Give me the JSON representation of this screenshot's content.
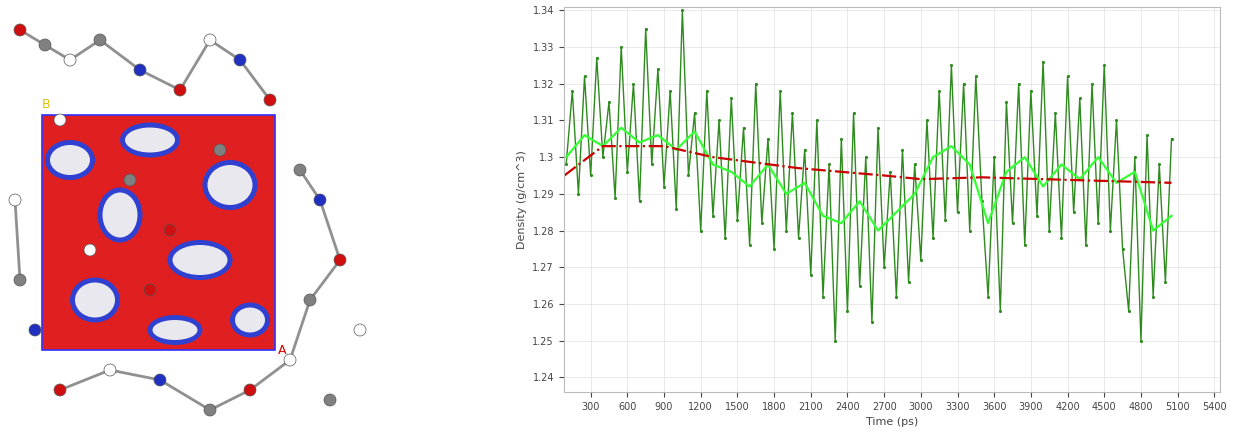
{
  "structure_view": {
    "corner_labels": [
      {
        "text": "B",
        "color": "#e0c000"
      },
      {
        "text": "A",
        "color": "#d00000"
      }
    ]
  },
  "chart_data": {
    "type": "line",
    "xlabel": "Time (ps)",
    "ylabel": "Density (g/cm^3)",
    "xlim": [
      80,
      5450
    ],
    "ylim": [
      1.236,
      1.341
    ],
    "xticks": [
      300,
      600,
      900,
      1200,
      1500,
      1800,
      2100,
      2400,
      2700,
      3000,
      3300,
      3600,
      3900,
      4200,
      4500,
      4800,
      5100,
      5400
    ],
    "yticks": [
      1.24,
      1.25,
      1.26,
      1.27,
      1.28,
      1.29,
      1.3,
      1.31,
      1.32,
      1.33,
      1.34
    ],
    "grid": true,
    "series": [
      {
        "color": "#2e8b1e",
        "marker": "point",
        "line_style": "solid",
        "x": [
          100,
          150,
          200,
          250,
          300,
          350,
          400,
          450,
          500,
          550,
          600,
          650,
          700,
          750,
          800,
          850,
          900,
          950,
          1000,
          1050,
          1100,
          1150,
          1200,
          1250,
          1300,
          1350,
          1400,
          1450,
          1500,
          1550,
          1600,
          1650,
          1700,
          1750,
          1800,
          1850,
          1900,
          1950,
          2000,
          2050,
          2100,
          2150,
          2200,
          2250,
          2300,
          2350,
          2400,
          2450,
          2500,
          2550,
          2600,
          2650,
          2700,
          2750,
          2800,
          2850,
          2900,
          2950,
          3000,
          3050,
          3100,
          3150,
          3200,
          3250,
          3300,
          3350,
          3400,
          3450,
          3500,
          3550,
          3600,
          3650,
          3700,
          3750,
          3800,
          3850,
          3900,
          3950,
          4000,
          4050,
          4100,
          4150,
          4200,
          4250,
          4300,
          4350,
          4400,
          4450,
          4500,
          4550,
          4600,
          4650,
          4700,
          4750,
          4800,
          4850,
          4900,
          4950,
          5000,
          5050
        ],
        "values": [
          1.298,
          1.318,
          1.29,
          1.322,
          1.295,
          1.327,
          1.3,
          1.315,
          1.289,
          1.33,
          1.296,
          1.32,
          1.288,
          1.335,
          1.298,
          1.324,
          1.292,
          1.318,
          1.286,
          1.34,
          1.295,
          1.312,
          1.28,
          1.318,
          1.284,
          1.31,
          1.278,
          1.316,
          1.283,
          1.308,
          1.276,
          1.32,
          1.282,
          1.305,
          1.275,
          1.318,
          1.28,
          1.312,
          1.278,
          1.302,
          1.268,
          1.31,
          1.262,
          1.298,
          1.25,
          1.305,
          1.258,
          1.312,
          1.265,
          1.3,
          1.255,
          1.308,
          1.27,
          1.296,
          1.262,
          1.302,
          1.266,
          1.298,
          1.272,
          1.31,
          1.278,
          1.318,
          1.283,
          1.325,
          1.285,
          1.32,
          1.28,
          1.322,
          1.288,
          1.262,
          1.3,
          1.258,
          1.315,
          1.282,
          1.32,
          1.276,
          1.318,
          1.284,
          1.326,
          1.28,
          1.312,
          1.278,
          1.322,
          1.285,
          1.316,
          1.276,
          1.32,
          1.282,
          1.325,
          1.28,
          1.31,
          1.275,
          1.258,
          1.3,
          1.25,
          1.306,
          1.262,
          1.298,
          1.266,
          1.305
        ]
      },
      {
        "color": "#33ff33",
        "line_style": "solid",
        "x": [
          100,
          250,
          400,
          550,
          700,
          850,
          1000,
          1150,
          1300,
          1450,
          1600,
          1750,
          1900,
          2050,
          2200,
          2350,
          2500,
          2650,
          2800,
          2950,
          3100,
          3250,
          3400,
          3550,
          3700,
          3850,
          4000,
          4150,
          4300,
          4450,
          4600,
          4750,
          4900,
          5050
        ],
        "values": [
          1.3,
          1.306,
          1.303,
          1.308,
          1.304,
          1.306,
          1.302,
          1.307,
          1.298,
          1.296,
          1.292,
          1.298,
          1.29,
          1.293,
          1.284,
          1.282,
          1.288,
          1.28,
          1.285,
          1.29,
          1.3,
          1.303,
          1.298,
          1.282,
          1.296,
          1.3,
          1.292,
          1.298,
          1.294,
          1.3,
          1.293,
          1.296,
          1.28,
          1.284
        ]
      },
      {
        "color": "#cc0000",
        "line_style": "dashdot",
        "x": [
          85,
          400,
          900,
          1300,
          2000,
          2700,
          3000,
          3500,
          4000,
          5050
        ],
        "values": [
          1.295,
          1.303,
          1.303,
          1.3,
          1.297,
          1.295,
          1.294,
          1.2945,
          1.294,
          1.293
        ]
      }
    ]
  }
}
